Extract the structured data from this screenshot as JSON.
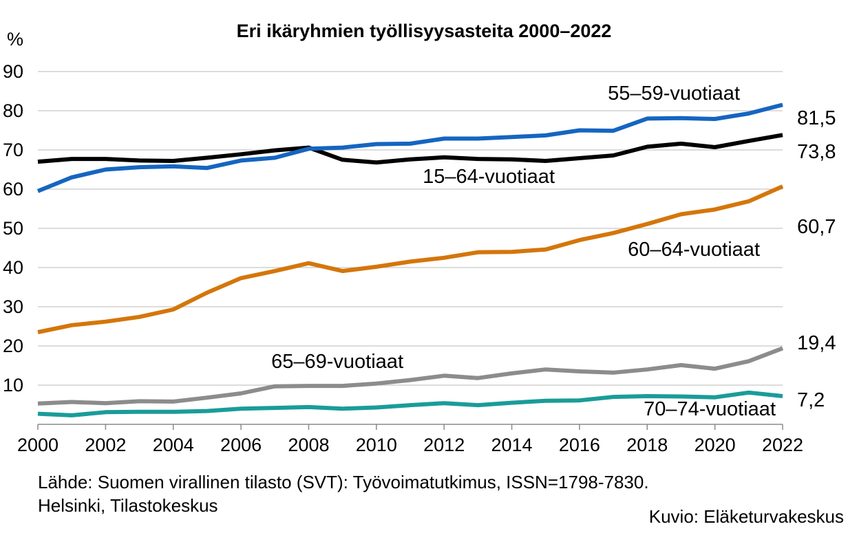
{
  "chart_data": {
    "type": "line",
    "title": "Eri ikäryhmien työllisyysasteita 2000–2022",
    "ylabel": "%",
    "ylim": [
      0,
      90
    ],
    "yticks": [
      10,
      20,
      30,
      40,
      50,
      60,
      70,
      80,
      90
    ],
    "xlim": [
      2000,
      2022
    ],
    "xticks": [
      2000,
      2002,
      2004,
      2006,
      2008,
      2010,
      2012,
      2014,
      2016,
      2018,
      2020,
      2022
    ],
    "grid": true,
    "x": [
      2000,
      2001,
      2002,
      2003,
      2004,
      2005,
      2006,
      2007,
      2008,
      2009,
      2010,
      2011,
      2012,
      2013,
      2014,
      2015,
      2016,
      2017,
      2018,
      2019,
      2020,
      2021,
      2022
    ],
    "series": [
      {
        "name": "55–59-vuotiaat",
        "color": "#1565c0",
        "end_label": "81,5",
        "values": [
          59.5,
          63,
          65,
          65.6,
          65.8,
          65.4,
          67.3,
          68,
          70.3,
          70.6,
          71.5,
          71.6,
          72.9,
          72.9,
          73.3,
          73.7,
          75,
          74.9,
          78,
          78.1,
          77.9,
          79.3,
          81.5
        ]
      },
      {
        "name": "15–64-vuotiaat",
        "color": "#000000",
        "end_label": "73,8",
        "values": [
          67.0,
          67.7,
          67.7,
          67.3,
          67.2,
          68.0,
          68.9,
          69.9,
          70.6,
          67.5,
          66.8,
          67.6,
          68.1,
          67.7,
          67.6,
          67.2,
          67.9,
          68.6,
          70.8,
          71.6,
          70.7,
          72.3,
          73.8
        ]
      },
      {
        "name": "60–64-vuotiaat",
        "color": "#d4760a",
        "end_label": "60,7",
        "values": [
          23.5,
          25.3,
          26.2,
          27.4,
          29.3,
          33.6,
          37.3,
          39.1,
          41.1,
          39.1,
          40.2,
          41.5,
          42.5,
          43.9,
          44.0,
          44.6,
          47.0,
          48.8,
          51.1,
          53.6,
          54.8,
          56.9,
          60.7
        ]
      },
      {
        "name": "65–69-vuotiaat",
        "color": "#8c8c8c",
        "end_label": "19,4",
        "values": [
          5.3,
          5.7,
          5.4,
          5.9,
          5.8,
          6.8,
          7.9,
          9.7,
          9.8,
          9.8,
          10.4,
          11.3,
          12.4,
          11.8,
          13.0,
          14.0,
          13.5,
          13.2,
          14.0,
          15.1,
          14.2,
          16.1,
          19.4
        ]
      },
      {
        "name": "70–74-vuotiaat",
        "color": "#1a9c99",
        "end_label": "7,2",
        "values": [
          2.7,
          2.3,
          3.1,
          3.2,
          3.2,
          3.4,
          4.0,
          4.2,
          4.4,
          4.0,
          4.3,
          4.9,
          5.4,
          4.9,
          5.5,
          6.0,
          6.1,
          7.0,
          7.2,
          7.1,
          6.9,
          8.1,
          7.2
        ]
      }
    ]
  },
  "footer": {
    "source_line1": "Lähde: Suomen virallinen tilasto (SVT): Työvoimatutkimus, ISSN=1798-7830.",
    "source_line2": "Helsinki, Tilastokeskus",
    "credit": "Kuvio: Eläketurvakeskus"
  }
}
